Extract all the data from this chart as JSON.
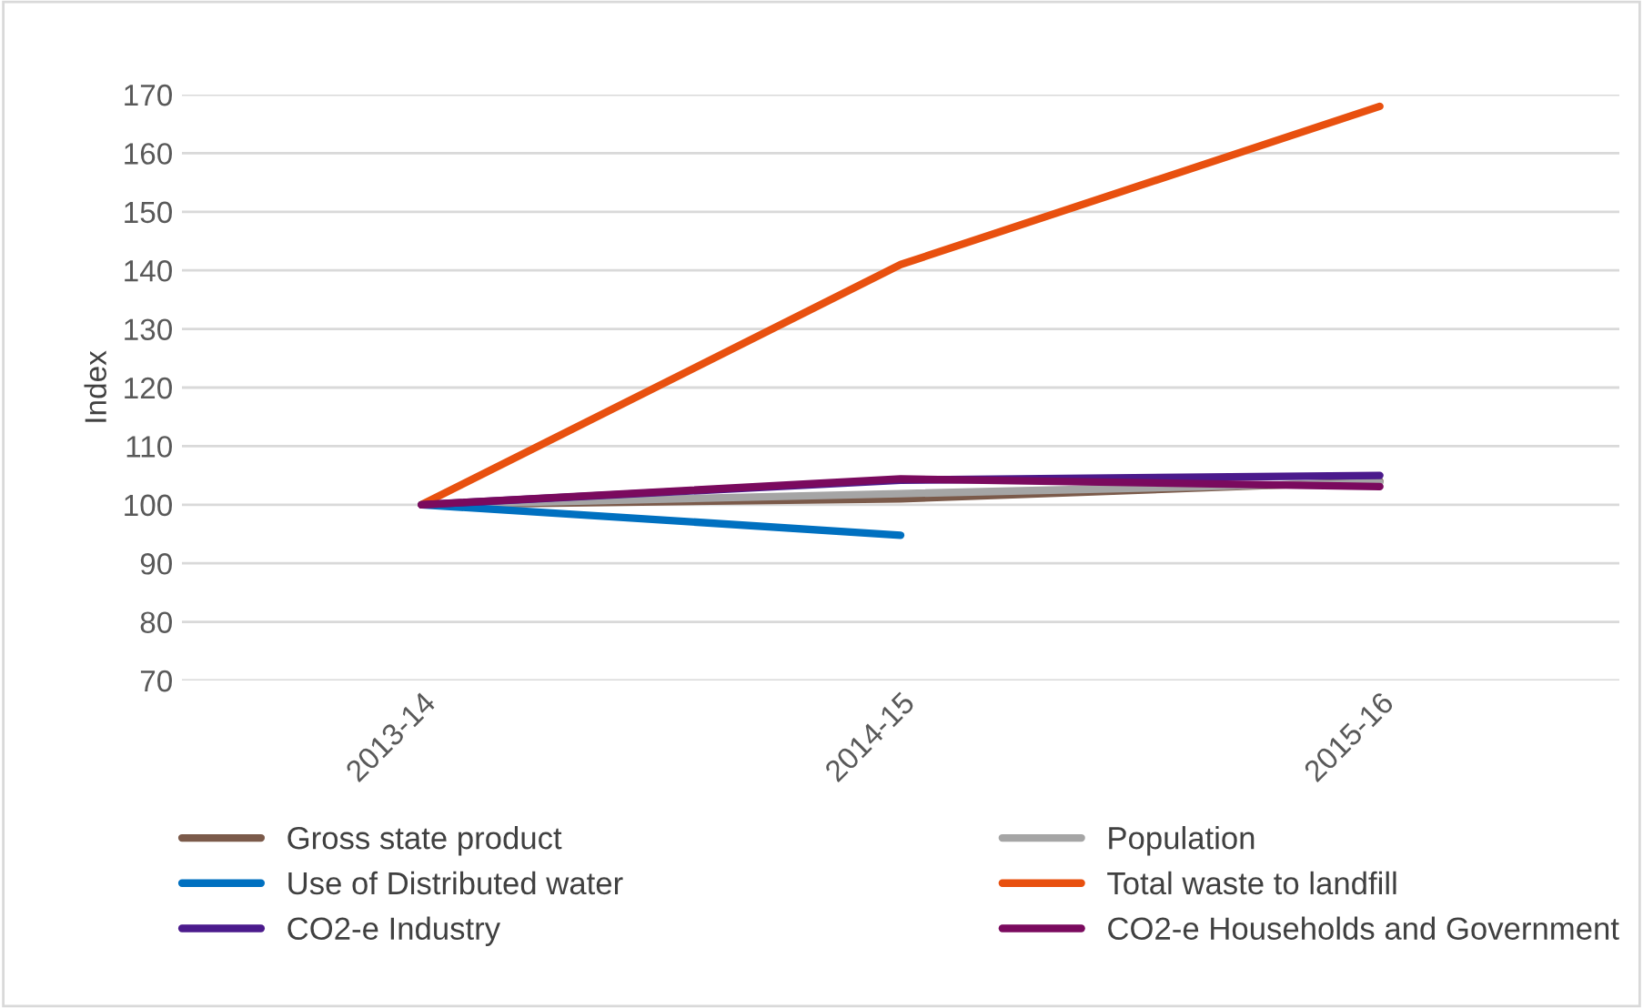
{
  "chart_data": {
    "type": "line",
    "ylabel": "Index",
    "categories": [
      "2013-14",
      "2014-15",
      "2015-16"
    ],
    "ylim": [
      70,
      170
    ],
    "yticks": [
      70,
      80,
      90,
      100,
      110,
      120,
      130,
      140,
      150,
      160,
      170
    ],
    "grid": "y",
    "legend": "bottom",
    "marker": "none",
    "series": [
      {
        "name": "Gross state product",
        "color": "#7b5a4a",
        "values": [
          100,
          101,
          104
        ]
      },
      {
        "name": "Population",
        "color": "#a5a5a5",
        "values": [
          100,
          101.9,
          103.8
        ]
      },
      {
        "name": "Use of Distributed water",
        "color": "#0070c0",
        "values": [
          100,
          94.8,
          null
        ]
      },
      {
        "name": "Total waste to landfill",
        "color": "#e8500f",
        "values": [
          100,
          141,
          168
        ]
      },
      {
        "name": "CO2-e Industry",
        "color": "#4b1a8c",
        "values": [
          100,
          104.2,
          105
        ]
      },
      {
        "name": "CO2-e Households and Government",
        "color": "#7a0a5e",
        "values": [
          100,
          104.4,
          103.1
        ]
      }
    ]
  }
}
